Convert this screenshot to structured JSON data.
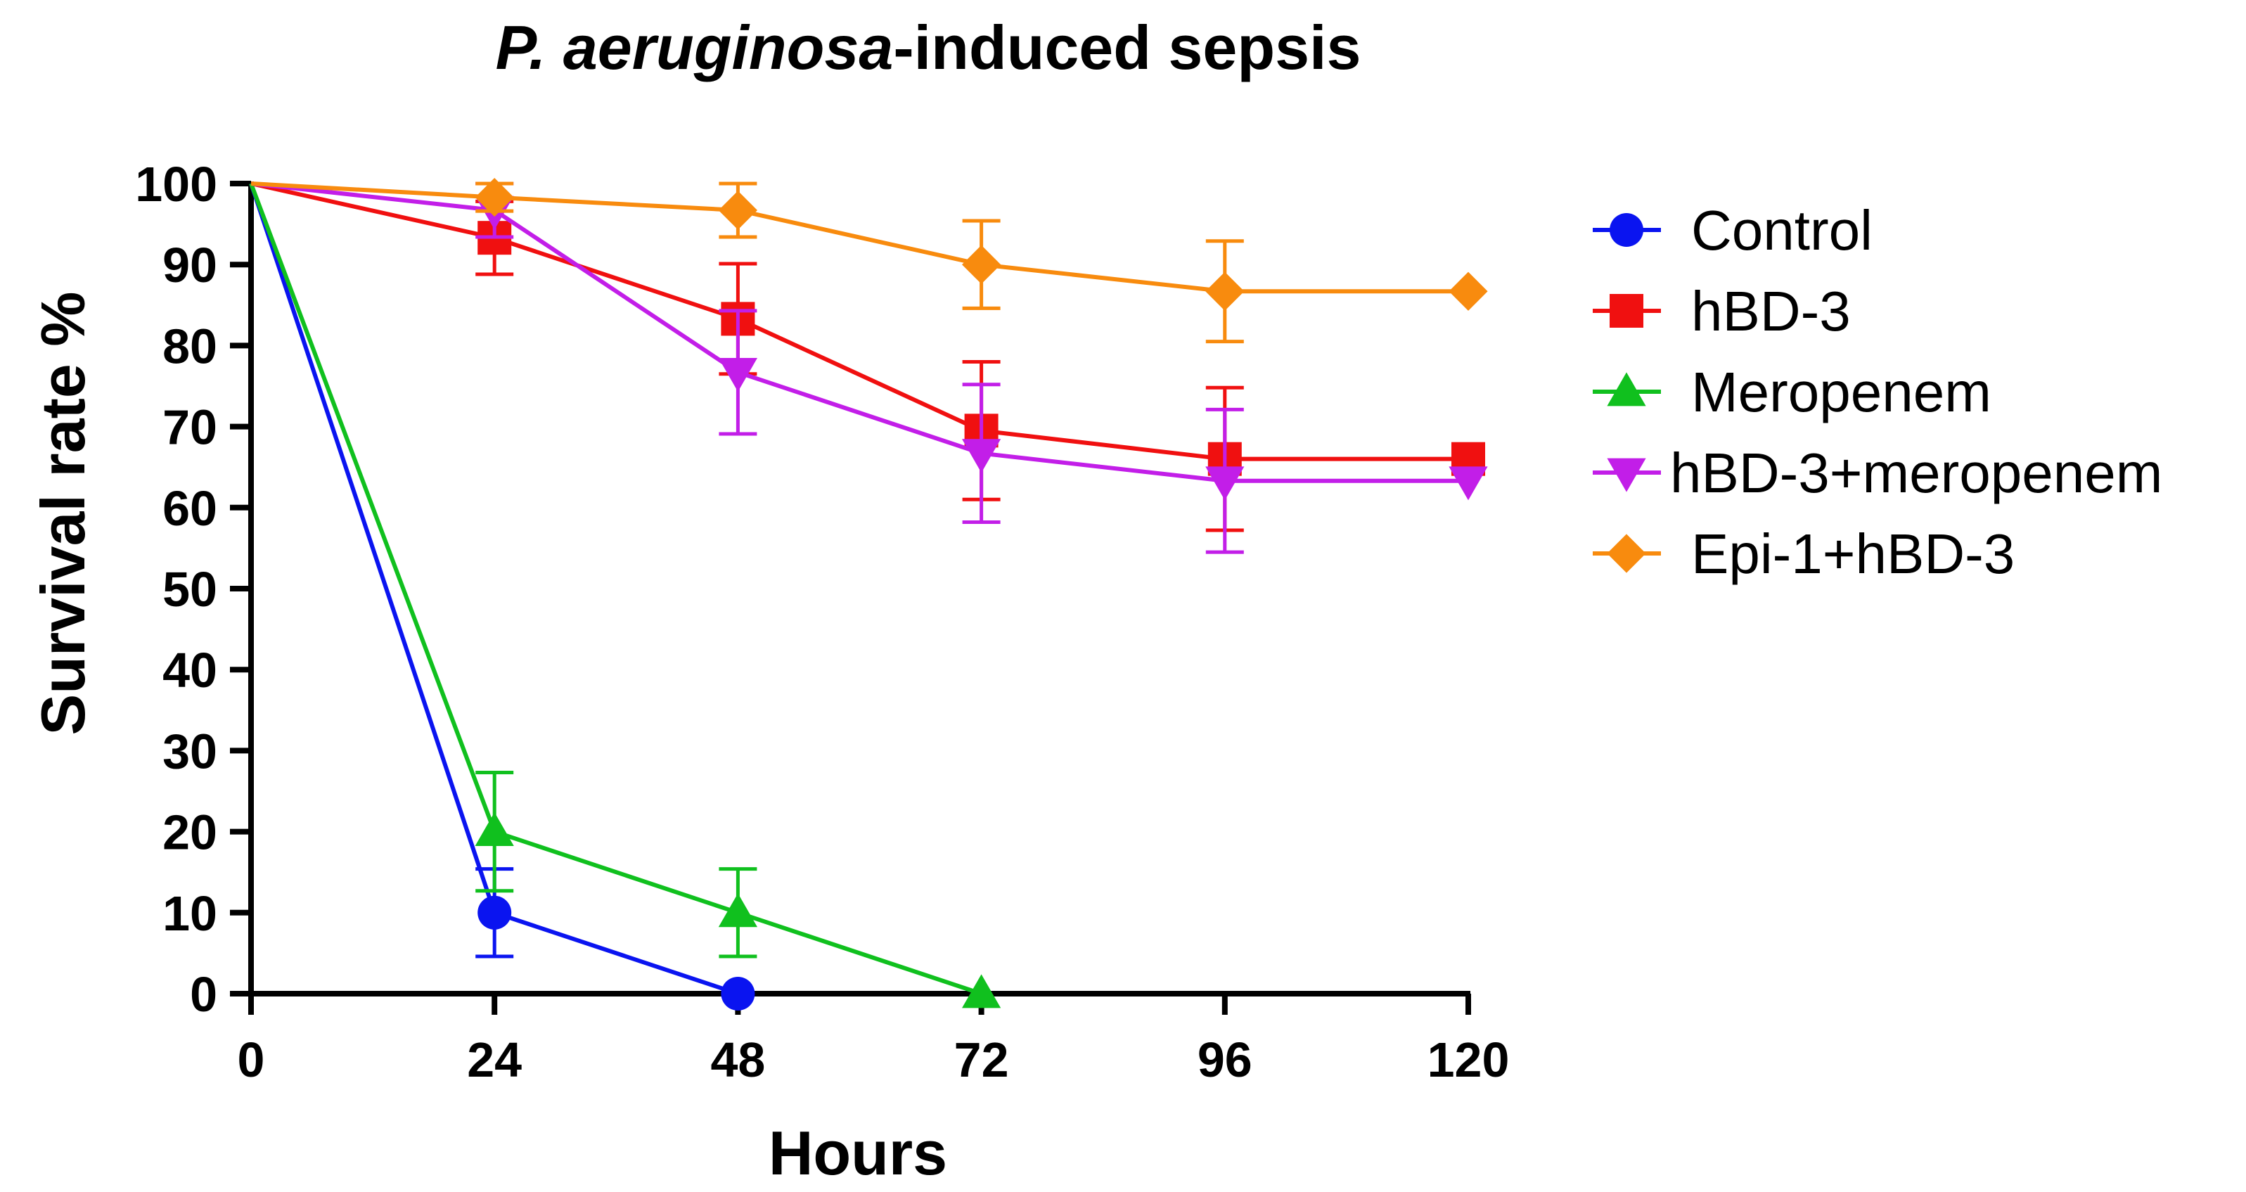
{
  "chart_data": {
    "type": "line",
    "title": {
      "italic": "P. aeruginosa",
      "rest": "-induced sepsis"
    },
    "xlabel": "Hours",
    "ylabel": "Survival rate %",
    "xlim": [
      0,
      120
    ],
    "ylim": [
      0,
      100
    ],
    "x_ticks": [
      0,
      24,
      48,
      72,
      96,
      120
    ],
    "y_ticks": [
      0,
      10,
      20,
      30,
      40,
      50,
      60,
      70,
      80,
      90,
      100
    ],
    "grid": false,
    "legend_position": "right",
    "series": [
      {
        "name": "Control",
        "color": "#0a14f0",
        "marker": "circle",
        "x": [
          0,
          24,
          48
        ],
        "values": [
          100,
          10,
          0
        ],
        "errors": [
          0,
          5.4,
          0
        ]
      },
      {
        "name": "hBD-3",
        "color": "#f01010",
        "marker": "square",
        "x": [
          0,
          24,
          48,
          72,
          96,
          120
        ],
        "values": [
          100,
          93.3,
          83.3,
          69.5,
          66,
          66
        ],
        "errors": [
          0,
          4.5,
          6.8,
          8.5,
          8.8,
          0
        ]
      },
      {
        "name": "Meropenem",
        "color": "#10c01e",
        "marker": "triangle-up",
        "x": [
          0,
          24,
          48,
          72
        ],
        "values": [
          100,
          20,
          10,
          0
        ],
        "errors": [
          0,
          7.3,
          5.4,
          0
        ]
      },
      {
        "name": "hBD-3+meropenem",
        "color": "#c21ee8",
        "marker": "triangle-down",
        "x": [
          0,
          24,
          48,
          72,
          96,
          120
        ],
        "values": [
          100,
          96.7,
          76.7,
          66.7,
          63.3,
          63.3
        ],
        "errors": [
          0,
          3.3,
          7.6,
          8.5,
          8.8,
          0
        ]
      },
      {
        "name": "Epi-1+hBD-3",
        "color": "#f88b0e",
        "marker": "diamond",
        "x": [
          0,
          24,
          48,
          72,
          96,
          120
        ],
        "values": [
          100,
          98.3,
          96.7,
          90,
          86.7,
          86.7
        ],
        "errors": [
          0,
          1.7,
          3.3,
          5.4,
          6.2,
          0
        ]
      }
    ]
  }
}
